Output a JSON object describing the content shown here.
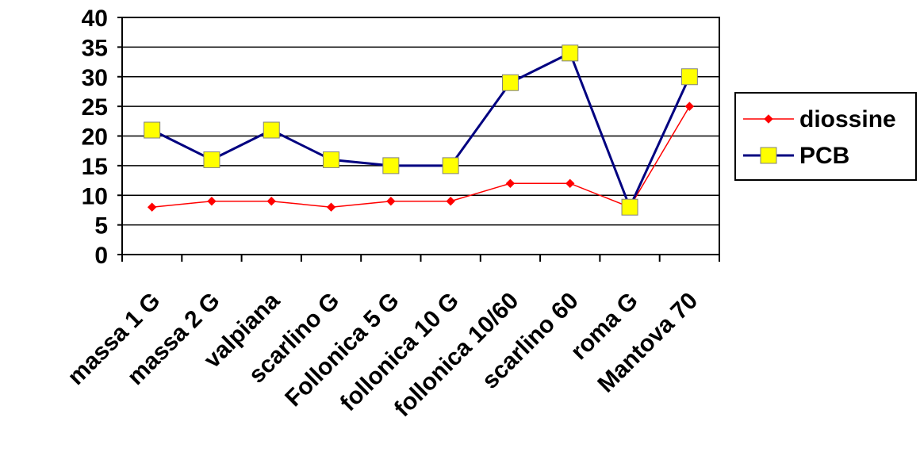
{
  "chart_data": {
    "type": "line",
    "categories": [
      "massa 1 G",
      "massa 2 G",
      "valpiana",
      "scarlino G",
      "Follonica 5 G",
      "follonica 10 G",
      "follonica 10/60",
      "scarlino 60",
      "roma G",
      "Mantova 70"
    ],
    "series": [
      {
        "name": "diossine",
        "values": [
          8,
          9,
          9,
          8,
          9,
          9,
          12,
          12,
          8,
          25
        ],
        "color": "#FF0000",
        "marker": "diamond"
      },
      {
        "name": "PCB",
        "values": [
          21,
          16,
          21,
          16,
          15,
          15,
          29,
          34,
          8,
          30
        ],
        "color": "#000080",
        "marker": "square",
        "marker_fill": "#FFFF00"
      }
    ],
    "ylim": [
      0,
      40
    ],
    "yticks": [
      "0",
      "5",
      "10",
      "15",
      "20",
      "25",
      "30",
      "35",
      "40"
    ],
    "grid": true,
    "legend_position": "right",
    "title": "",
    "xlabel": "",
    "ylabel": ""
  }
}
